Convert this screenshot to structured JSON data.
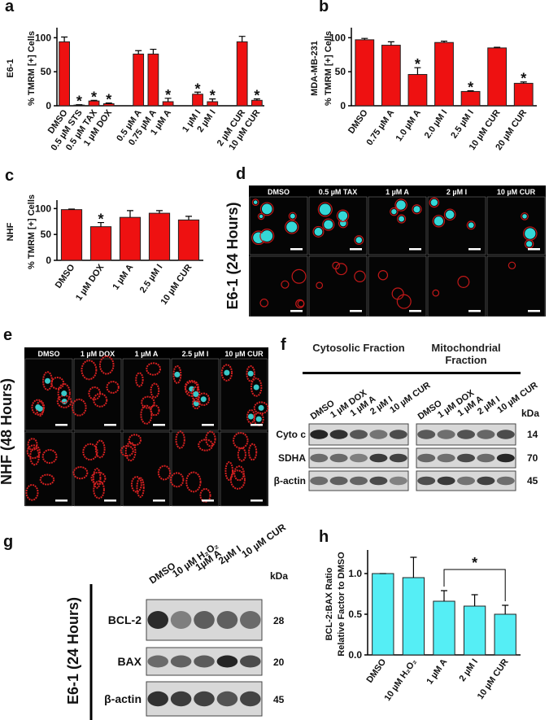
{
  "chart_data": [
    {
      "type": "bar",
      "panel": "a",
      "side_label": "E6-1",
      "y_label": "% TMRM [+] Cells",
      "categories": [
        "DMSO",
        "0.5 µM STS",
        "0.5 µM TAX",
        "1 µM DOX",
        null,
        "0.5 µM A",
        "0.75 µM A",
        "1 µM A",
        null,
        "1 µM I",
        "2 µM I",
        null,
        "2 µM CUR",
        "10 µM CUR"
      ],
      "values": [
        94,
        1,
        7,
        3,
        null,
        76,
        76,
        6,
        null,
        17,
        6,
        null,
        94,
        8
      ],
      "errors": [
        7,
        0.5,
        1,
        1,
        null,
        5,
        7,
        5,
        null,
        3,
        4,
        null,
        8,
        2
      ],
      "sig_labels": [
        null,
        "*",
        "*",
        "*",
        null,
        null,
        null,
        "*",
        null,
        "*",
        "*",
        null,
        null,
        "*"
      ],
      "color": "#ee1111",
      "ylim": [
        0,
        110
      ],
      "yticks": [
        0,
        50,
        100
      ]
    },
    {
      "type": "bar",
      "panel": "b",
      "side_label": "MDA-MB-231",
      "y_label": "% TMRM [+] Cells",
      "categories": [
        "DMSO",
        "0.75 µM A",
        "1.0 µM A",
        "2.0 µM I",
        "2.5 µM I",
        "10 µM CUR",
        "20 µM CUR"
      ],
      "values": [
        97,
        89,
        46,
        93,
        21,
        85,
        33
      ],
      "errors": [
        2,
        5,
        10,
        2,
        1,
        1,
        2
      ],
      "sig_labels": [
        null,
        null,
        "*",
        null,
        "*",
        null,
        "*"
      ],
      "color": "#ee1111",
      "ylim": [
        0,
        110
      ],
      "yticks": [
        0,
        50,
        100
      ]
    },
    {
      "type": "bar",
      "panel": "c",
      "side_label": "NHF",
      "y_label": "% TMRM [+] Cells",
      "categories": [
        "DMSO",
        "1 µM DOX",
        "1 µM A",
        "2.5 µM I",
        "10 µM CUR"
      ],
      "values": [
        98,
        65,
        83,
        91,
        78
      ],
      "errors": [
        1,
        8,
        13,
        5,
        7
      ],
      "sig_labels": [
        null,
        "*",
        null,
        null,
        null
      ],
      "color": "#ee1111",
      "ylim": [
        0,
        110
      ],
      "yticks": [
        0,
        50,
        100
      ]
    },
    {
      "type": "bar",
      "panel": "h",
      "y_label": "BCL-2:BAX Ratio",
      "y_label_2": "Relative Factor to DMSO",
      "categories": [
        "DMSO",
        "10 µM H₂O₂",
        "1 µM A",
        "2 µM I",
        "10 µM CUR"
      ],
      "values": [
        1.0,
        0.95,
        0.66,
        0.6,
        0.5
      ],
      "errors": [
        0,
        0.25,
        0.13,
        0.14,
        0.11
      ],
      "bracket": {
        "from": "1 µM A",
        "to": "10 µM CUR",
        "label": "*"
      },
      "color": "#55eef5",
      "ylim": [
        0,
        1.25
      ],
      "yticks": [
        {
          "value": 0,
          "label": "0.0"
        },
        {
          "value": 0.5,
          "label": "0.5"
        },
        {
          "value": 1,
          "label": "1.0"
        }
      ]
    }
  ],
  "panels": {
    "d": {
      "letter": "d",
      "side_label": "E6-1 (24 Hours)",
      "columns": [
        "DMSO",
        "0.5 µM TAX",
        "1 µM A",
        "2 µM I",
        "10 µM CUR"
      ]
    },
    "e": {
      "letter": "e",
      "side_label": "NHF (48 Hours)",
      "columns": [
        "DMSO",
        "1 µM DOX",
        "1 µM A",
        "2.5 µM I",
        "10 µM CUR"
      ]
    },
    "f": {
      "letter": "f",
      "headers": [
        "Cytosolic Fraction",
        "Mitochondrial Fraction"
      ],
      "lanes": [
        "DMSO",
        "1 µM DOX",
        "1 µM A",
        "2 µM I",
        "10 µM CUR"
      ],
      "kda_label": "kDa",
      "rows": [
        {
          "label": "Cyto c",
          "kda": 14
        },
        {
          "label": "SDHA",
          "kda": 70
        },
        {
          "label": "β-actin",
          "kda": 45
        }
      ]
    },
    "g": {
      "letter": "g",
      "side_label": "E6-1 (24 Hours)",
      "lanes": [
        "DMSO",
        "10 µM H₂O₂",
        "1µM A",
        "2µM I",
        "10 µM CUR"
      ],
      "kda_label": "kDa",
      "rows": [
        {
          "label": "BCL-2",
          "kda": 28
        },
        {
          "label": "BAX",
          "kda": 20
        },
        {
          "label": "β-actin",
          "kda": 45
        }
      ]
    }
  }
}
